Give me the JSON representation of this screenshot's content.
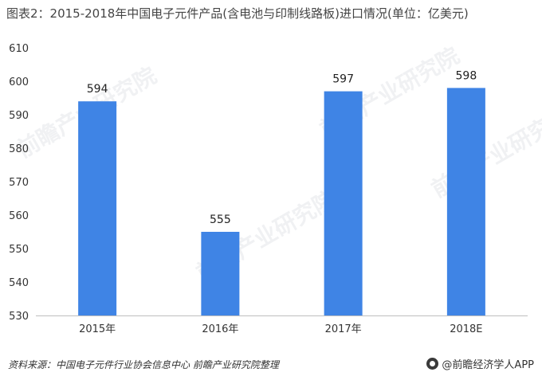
{
  "title": "图表2：2015-2018年中国电子元件产品(含电池与印制线路板)进口情况(单位：亿美元)",
  "source_note": "资料来源：中国电子元件行业协会信息中心 前瞻产业研究院整理",
  "brand": {
    "label": "@前瞻经济学人APP",
    "icon": "qianzhan-logo-icon"
  },
  "watermark_text": "前瞻产业研究院",
  "colors": {
    "bar": "#3F84E5",
    "axis": "#BFBFBF",
    "tick_text": "#333333"
  },
  "chart_data": {
    "type": "bar",
    "categories": [
      "2015年",
      "2016年",
      "2017年",
      "2018E"
    ],
    "values": [
      594,
      555,
      597,
      598
    ],
    "data_labels": [
      "594",
      "555",
      "597",
      "598"
    ],
    "ylim": [
      530,
      610
    ],
    "yticks": [
      530,
      540,
      550,
      560,
      570,
      580,
      590,
      600,
      610
    ],
    "ytick_labels": [
      "530",
      "540",
      "550",
      "560",
      "570",
      "580",
      "590",
      "600",
      "610"
    ],
    "grid": false,
    "legend": "none",
    "xlabel": "",
    "ylabel": ""
  }
}
